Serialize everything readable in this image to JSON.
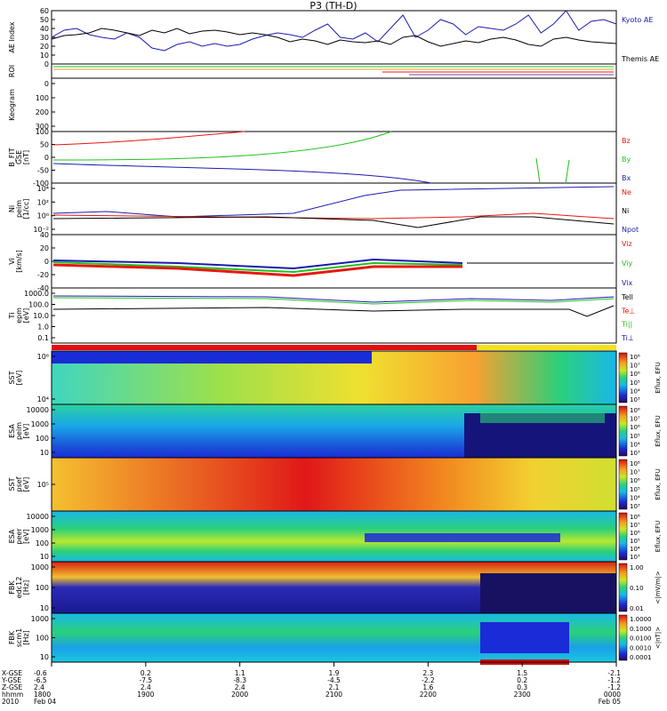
{
  "title": "P3 (TH-D)",
  "colors": {
    "red": "#e8170f",
    "green": "#21c21d",
    "blue": "#1b1bb0",
    "black": "#000000"
  },
  "chart_data": [
    {
      "id": "ae",
      "type": "line",
      "ylabel": "AE Index",
      "yticks": [
        "0",
        "10",
        "20",
        "30",
        "40",
        "50",
        "60"
      ],
      "ylim": [
        0,
        60
      ],
      "series": [
        {
          "name": "Kyoto AE",
          "color": "blue",
          "values": [
            30,
            38,
            40,
            33,
            30,
            28,
            35,
            30,
            18,
            15,
            22,
            25,
            20,
            23,
            20,
            22,
            28,
            32,
            35,
            33,
            30,
            38,
            45,
            30,
            28,
            35,
            25,
            40,
            55,
            30,
            38,
            50,
            45,
            33,
            42,
            40,
            38,
            45,
            55,
            35,
            45,
            60,
            38,
            48,
            50,
            45
          ]
        },
        {
          "name": "Themis AE",
          "color": "black",
          "values": [
            28,
            32,
            33,
            35,
            40,
            38,
            35,
            32,
            38,
            35,
            40,
            34,
            37,
            38,
            36,
            33,
            35,
            33,
            30,
            25,
            28,
            26,
            22,
            27,
            25,
            24,
            26,
            22,
            30,
            32,
            25,
            20,
            23,
            26,
            24,
            28,
            30,
            27,
            22,
            20,
            28,
            30,
            27,
            25,
            24,
            23
          ]
        }
      ]
    },
    {
      "id": "roi",
      "type": "scatter",
      "ylabel": "ROI"
    },
    {
      "id": "keogram",
      "type": "heatmap",
      "ylabel": "Keogram",
      "yticks": [
        "0",
        "100",
        "200",
        "300"
      ]
    },
    {
      "id": "bfit",
      "type": "line",
      "ylabel": "B_FIT\nGSE\n[nT]",
      "yticks": [
        "-100",
        "-50",
        "0",
        "50",
        "100"
      ],
      "ylim": [
        -100,
        100
      ],
      "series": [
        {
          "name": "Bz",
          "color": "red"
        },
        {
          "name": "By",
          "color": "green"
        },
        {
          "name": "Bx",
          "color": "blue"
        }
      ]
    },
    {
      "id": "ni",
      "type": "line",
      "ylabel": "Ni\npeim\n[1/cc]",
      "yticks": [
        "10⁴",
        "10²",
        "10⁰",
        "10⁻²"
      ],
      "series": [
        {
          "name": "Ne",
          "color": "red"
        },
        {
          "name": "Ni",
          "color": "black"
        },
        {
          "name": "Npot",
          "color": "blue"
        }
      ]
    },
    {
      "id": "vi",
      "type": "line",
      "ylabel": "Vi\n[km/s]",
      "yticks": [
        "40",
        "20",
        "0",
        "-20",
        "-40"
      ],
      "ylim": [
        -40,
        40
      ],
      "series": [
        {
          "name": "Viz",
          "color": "red"
        },
        {
          "name": "Viy",
          "color": "green"
        },
        {
          "name": "Vix",
          "color": "blue"
        }
      ]
    },
    {
      "id": "ti",
      "type": "line",
      "ylabel": "Ti\nepm\n[eV]",
      "yticks": [
        "1000.0",
        "100.0",
        "10.0",
        "1.0",
        "0.1"
      ],
      "series": [
        {
          "name": "Tell",
          "color": "black"
        },
        {
          "name": "Te⊥",
          "color": "red"
        },
        {
          "name": "Ti||",
          "color": "green"
        },
        {
          "name": "Ti⊥",
          "color": "blue"
        }
      ]
    },
    {
      "id": "sst1",
      "type": "heatmap",
      "ylabel": "SST\n[eV]",
      "yticks": [
        "10⁶",
        "10⁴"
      ],
      "cbar": [
        "10⁸",
        "10⁷",
        "10⁶",
        "10⁵",
        "10⁴",
        "10³"
      ],
      "cbar_label": "Eflux, EFU"
    },
    {
      "id": "esa1",
      "type": "heatmap",
      "ylabel": "ESA\npeim\n[eV]",
      "yticks": [
        "10000",
        "1000",
        "100",
        "10"
      ],
      "cbar": [
        "10⁸",
        "10⁷",
        "10⁶",
        "10⁵",
        "10⁴",
        "10³"
      ],
      "cbar_label": "Eflux, EFU"
    },
    {
      "id": "sst2",
      "type": "heatmap",
      "ylabel": "SST\npsef\n[eV]",
      "yticks": [
        "10⁵"
      ],
      "cbar": [
        "10⁸",
        "10⁷",
        "10⁶",
        "10⁵",
        "10⁴",
        "10³"
      ],
      "cbar_label": "Eflux, EFU"
    },
    {
      "id": "esa2",
      "type": "heatmap",
      "ylabel": "ESA\npeer\n[eV]",
      "yticks": [
        "10000",
        "1000",
        "100",
        "10"
      ],
      "cbar": [
        "10⁸",
        "10⁷",
        "10⁶",
        "10⁵",
        "10⁴",
        "10³"
      ],
      "cbar_label": "Eflux, EFU"
    },
    {
      "id": "fbk1",
      "type": "heatmap",
      "ylabel": "FBK\nedc12\n[Hz]",
      "yticks": [
        "1000",
        "100",
        "10"
      ],
      "cbar": [
        "1.00",
        "0.10",
        "0.01"
      ],
      "cbar_label": "<|mV/m|>"
    },
    {
      "id": "fbk2",
      "type": "heatmap",
      "ylabel": "FBK\nscm1\n[Hz]",
      "yticks": [
        "1000",
        "100",
        "10"
      ],
      "cbar": [
        "1.0000",
        "0.1000",
        "0.0100",
        "0.0010",
        "0.0001"
      ],
      "cbar_label": "<|nT|>"
    }
  ],
  "xaxis": {
    "row_labels": [
      "X-GSE",
      "Y-GSE",
      "Z-GSE",
      "hhmm",
      "2010"
    ],
    "columns": [
      [
        "-0.6",
        "-6.5",
        "2.4",
        "1800",
        "Feb 04"
      ],
      [
        "0.2",
        "-7.5",
        "2.4",
        "1900",
        ""
      ],
      [
        "1.1",
        "-8.3",
        "2.4",
        "2000",
        ""
      ],
      [
        "1.9",
        "-4.5",
        "2.1",
        "2100",
        ""
      ],
      [
        "2.3",
        "-2.2",
        "1.6",
        "2200",
        ""
      ],
      [
        "1.5",
        "0.2",
        "0.3",
        "2300",
        ""
      ],
      [
        "-2.1",
        "-1.2",
        "-1.2",
        "0000",
        "Feb 05"
      ]
    ]
  }
}
